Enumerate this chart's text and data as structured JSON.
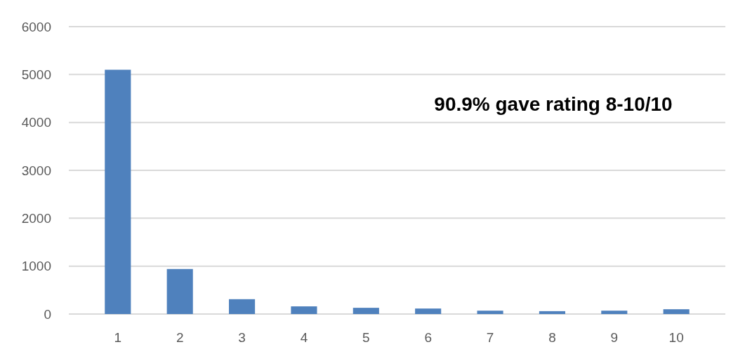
{
  "chart_data": {
    "type": "bar",
    "categories": [
      "1",
      "2",
      "3",
      "4",
      "5",
      "6",
      "7",
      "8",
      "9",
      "10"
    ],
    "values": [
      5100,
      940,
      310,
      160,
      130,
      115,
      70,
      60,
      70,
      100
    ],
    "color": "#4f81bd",
    "ylim": [
      0,
      6000
    ],
    "yticks": [
      0,
      1000,
      2000,
      3000,
      4000,
      5000,
      6000
    ],
    "grid": "y",
    "annotations": [
      "90.9% gave rating 8-10/10"
    ]
  }
}
